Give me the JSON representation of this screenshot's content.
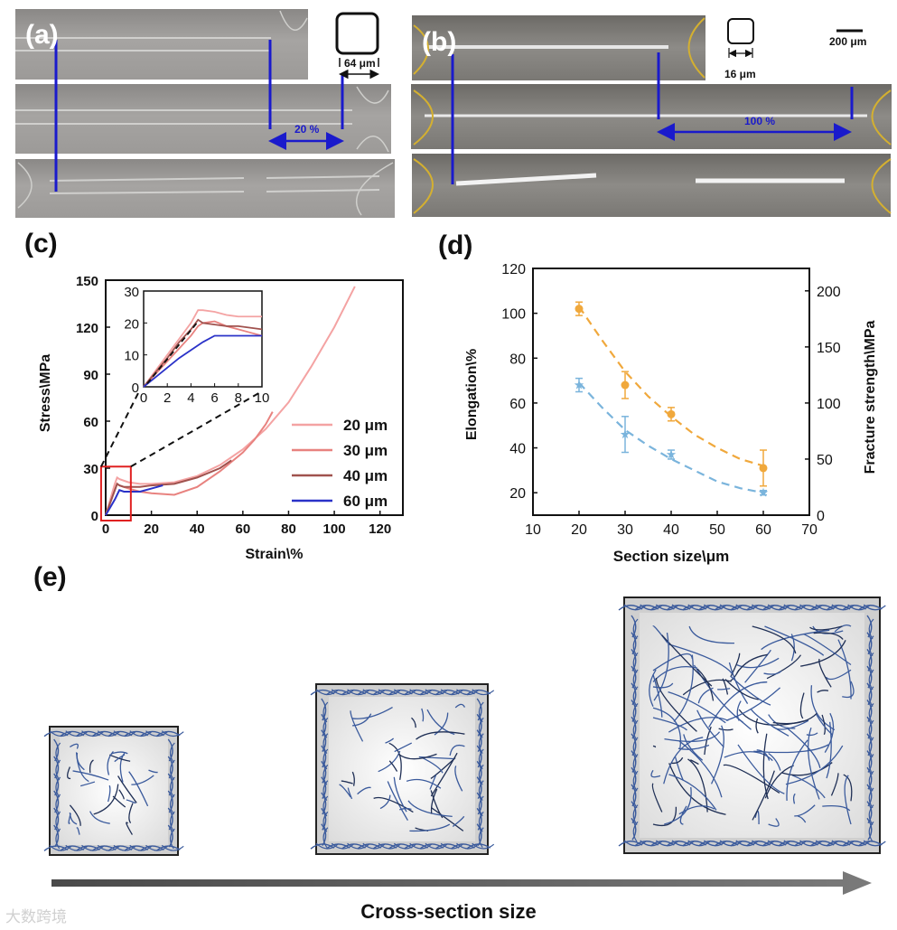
{
  "panels": {
    "a": {
      "label": "(a)",
      "section_size_label": "64 μm",
      "elongation_label": "20 %"
    },
    "b": {
      "label": "(b)",
      "section_size_label": "16 μm",
      "scale_bar_label": "200 μm",
      "elongation_label": "100 %"
    },
    "c": {
      "label": "(c)"
    },
    "d": {
      "label": "(d)"
    },
    "e": {
      "label": "(e)",
      "arrow_label": "Cross-section size"
    }
  },
  "watermark": "大数跨境",
  "colors": {
    "blue_marker": "#1a1acc",
    "series_20": "#f4a3a3",
    "series_30": "#e8827f",
    "series_40": "#a0524e",
    "series_60": "#2a32c8",
    "elongation": "#f0a83c",
    "fracture": "#7ab4dc",
    "inset_box": "#e02020",
    "fiber": "#3a5a9c"
  },
  "chart_data": [
    {
      "id": "c",
      "type": "line",
      "xlabel": "Strain\\%",
      "ylabel": "Stress\\MPa",
      "xlim": [
        0,
        130
      ],
      "ylim": [
        0,
        150
      ],
      "xticks": [
        0,
        20,
        40,
        60,
        80,
        100,
        120
      ],
      "yticks": [
        0,
        30,
        60,
        90,
        120,
        150
      ],
      "legend": [
        "20 μm",
        "30 μm",
        "40 μm",
        "60 μm"
      ],
      "legend_position": "lower-right",
      "series": [
        {
          "name": "20 μm",
          "x": [
            0,
            2,
            4,
            5,
            6,
            8,
            10,
            15,
            20,
            30,
            40,
            50,
            60,
            70,
            80,
            90,
            100,
            109
          ],
          "y": [
            0,
            10,
            20,
            24,
            23,
            22,
            21,
            20,
            20,
            21,
            25,
            32,
            42,
            55,
            72,
            95,
            120,
            146
          ]
        },
        {
          "name": "30 μm",
          "x": [
            0,
            2,
            4,
            5,
            6,
            8,
            10,
            15,
            20,
            30,
            40,
            50,
            60,
            65,
            70,
            73
          ],
          "y": [
            0,
            8,
            16,
            20,
            19,
            18,
            17,
            15,
            14,
            13,
            18,
            28,
            40,
            48,
            58,
            66
          ]
        },
        {
          "name": "40 μm",
          "x": [
            0,
            2,
            4,
            5,
            6,
            8,
            10,
            15,
            20,
            30,
            40,
            50,
            55
          ],
          "y": [
            0,
            8,
            16,
            20,
            19,
            18,
            18,
            18,
            19,
            20,
            24,
            30,
            35
          ]
        },
        {
          "name": "60 μm",
          "x": [
            0,
            2,
            4,
            6,
            8,
            10,
            15,
            20,
            25
          ],
          "y": [
            0,
            5,
            10,
            16,
            15,
            15,
            15,
            17,
            19
          ]
        }
      ],
      "inset": {
        "xlim": [
          0,
          10
        ],
        "ylim": [
          0,
          30
        ],
        "xticks": [
          0,
          2,
          4,
          6,
          8,
          10
        ],
        "yticks": [
          0,
          10,
          20,
          30
        ],
        "series": [
          {
            "name": "20 μm",
            "x": [
              0,
              1,
              2,
              3,
              4,
              4.6,
              5,
              6,
              7,
              8,
              9,
              10
            ],
            "y": [
              0,
              5,
              10,
              15,
              20,
              24,
              24,
              23.5,
              22.5,
              22,
              22,
              22
            ]
          },
          {
            "name": "30 μm",
            "x": [
              0,
              1,
              2,
              3,
              4,
              4.6,
              5,
              6,
              7,
              8,
              9,
              10
            ],
            "y": [
              0,
              4,
              8,
              12,
              16,
              19,
              20,
              20.5,
              19,
              18,
              17,
              16
            ]
          },
          {
            "name": "40 μm",
            "x": [
              0,
              1,
              2,
              3,
              4,
              4.6,
              5,
              6,
              7,
              8,
              9,
              10
            ],
            "y": [
              0,
              4.5,
              9,
              14,
              18,
              21,
              20,
              19.5,
              19,
              19,
              18.5,
              18
            ]
          },
          {
            "name": "60 μm",
            "x": [
              0,
              1,
              2,
              3,
              4,
              5,
              6,
              7,
              8,
              9,
              10
            ],
            "y": [
              0,
              3,
              6,
              9,
              11.5,
              14,
              16,
              16,
              16,
              16,
              16
            ]
          }
        ]
      }
    },
    {
      "id": "d",
      "type": "scatter",
      "xlabel": "Section size\\μm",
      "ylabel_left": "Elongation\\%",
      "ylabel_right": "Fracture strength\\MPa",
      "xlim": [
        10,
        70
      ],
      "ylim_left": [
        10,
        120
      ],
      "ylim_right": [
        0,
        220
      ],
      "xticks": [
        10,
        20,
        30,
        40,
        50,
        60,
        70
      ],
      "yticks_left": [
        20,
        40,
        60,
        80,
        100,
        120
      ],
      "yticks_right": [
        0,
        50,
        100,
        150,
        200
      ],
      "series": [
        {
          "name": "Elongation",
          "axis": "left",
          "marker": "circle",
          "x": [
            20,
            30,
            40,
            60
          ],
          "y": [
            102,
            68,
            55,
            31
          ],
          "err": [
            3,
            6,
            3,
            8
          ],
          "fit_x": [
            20,
            25,
            30,
            35,
            40,
            45,
            50,
            55,
            60
          ],
          "fit_y": [
            103,
            88,
            74,
            63,
            54,
            46,
            40,
            35,
            32
          ]
        },
        {
          "name": "Fracture strength",
          "axis": "left",
          "marker": "star",
          "x": [
            20,
            30,
            40,
            60
          ],
          "y": [
            68,
            46,
            37,
            20
          ],
          "err": [
            3,
            8,
            2,
            1
          ],
          "fit_x": [
            20,
            25,
            30,
            35,
            40,
            45,
            50,
            55,
            60
          ],
          "fit_y": [
            69,
            58,
            48,
            41,
            35,
            30,
            25,
            22,
            20
          ]
        }
      ]
    }
  ]
}
